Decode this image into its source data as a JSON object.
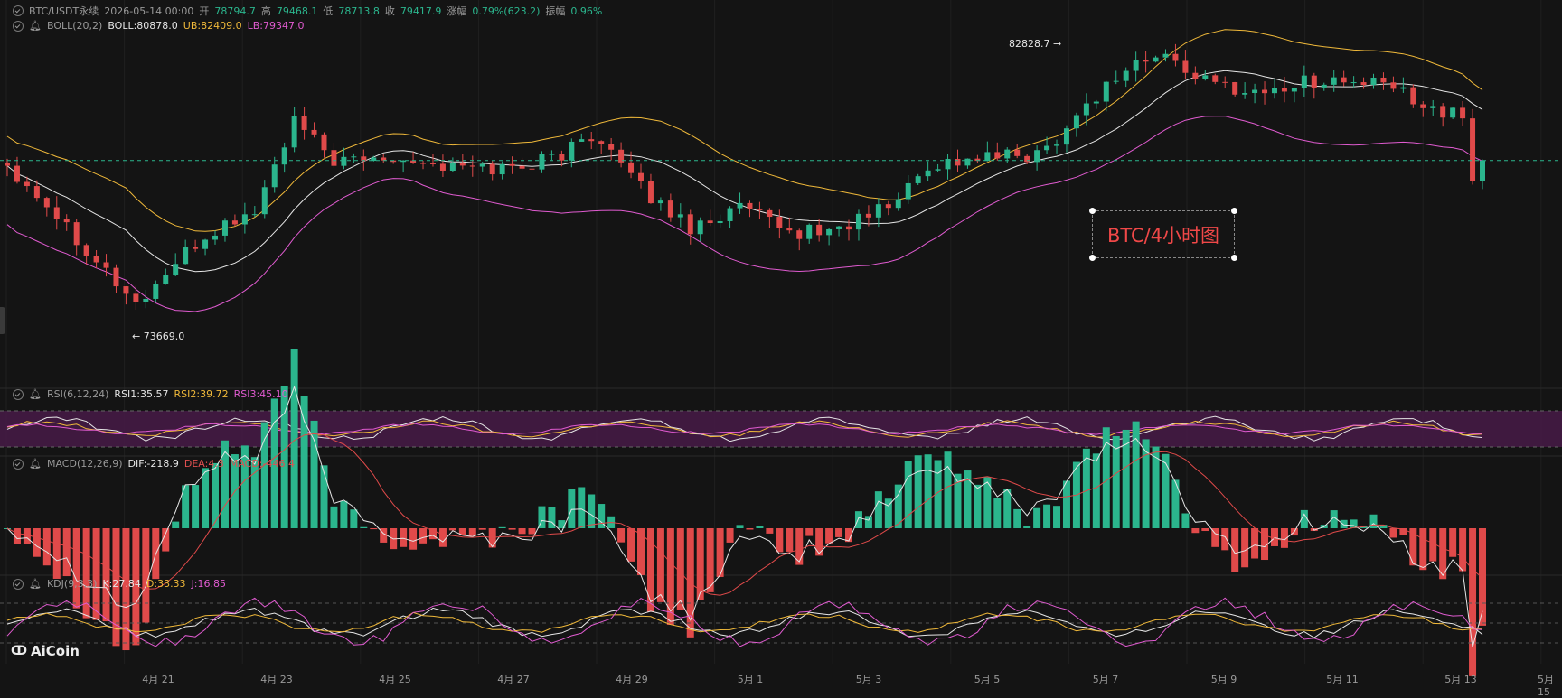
{
  "header": {
    "symbol": "BTC/USDT永续",
    "datetime": "2026-05-14 00:00",
    "open_label": "开",
    "open": "78794.7",
    "high_label": "高",
    "high": "79468.1",
    "low_label": "低",
    "low": "78713.8",
    "close_label": "收",
    "close": "79417.9",
    "change_label": "涨幅",
    "change": "0.79%(623.2)",
    "amp_label": "振幅",
    "amp": "0.96%"
  },
  "boll": {
    "label": "BOLL(20,2)",
    "mid": "BOLL:80878.0",
    "ub": "UB:82409.0",
    "lb": "LB:79347.0"
  },
  "rsi": {
    "label": "RSI(6,12,24)",
    "rsi1": "RSI1:35.57",
    "rsi2": "RSI2:39.72",
    "rsi3": "RSI3:45.10"
  },
  "macd": {
    "label": "MACD(12,26,9)",
    "dif": "DIF:-218.9",
    "dea": "DEA:4.3",
    "macd": "MACD:-446.4"
  },
  "kdj": {
    "label": "KDJ(9,3,3)",
    "k": "K:27.84",
    "d": "D:33.33",
    "j": "J:16.85"
  },
  "annotations": {
    "high_mark": "82828.7 →",
    "low_mark": "← 73669.0",
    "box_text": "BTC/4小时图"
  },
  "x_axis": [
    "4月 21",
    "4月 23",
    "4月 25",
    "4月 27",
    "4月 29",
    "5月 1",
    "5月 3",
    "5月 5",
    "5月 7",
    "5月 9",
    "5月 11",
    "5月 13",
    "5月 15"
  ],
  "logo": "AiCoin",
  "colors": {
    "up": "#2bb58d",
    "down": "#e04a4a",
    "mid": "#e6e6e6",
    "ub": "#f0b93a",
    "lb": "#e05bd0",
    "rsi_band": "#4a1a4a"
  },
  "chart_data": {
    "type": "candlestick",
    "interval": "4h",
    "x_range": [
      "4月 20",
      "5月 15"
    ],
    "y_range": [
      73000,
      83500
    ],
    "high": 82828.7,
    "low": 73669.0,
    "last_close": 79417.9
  }
}
